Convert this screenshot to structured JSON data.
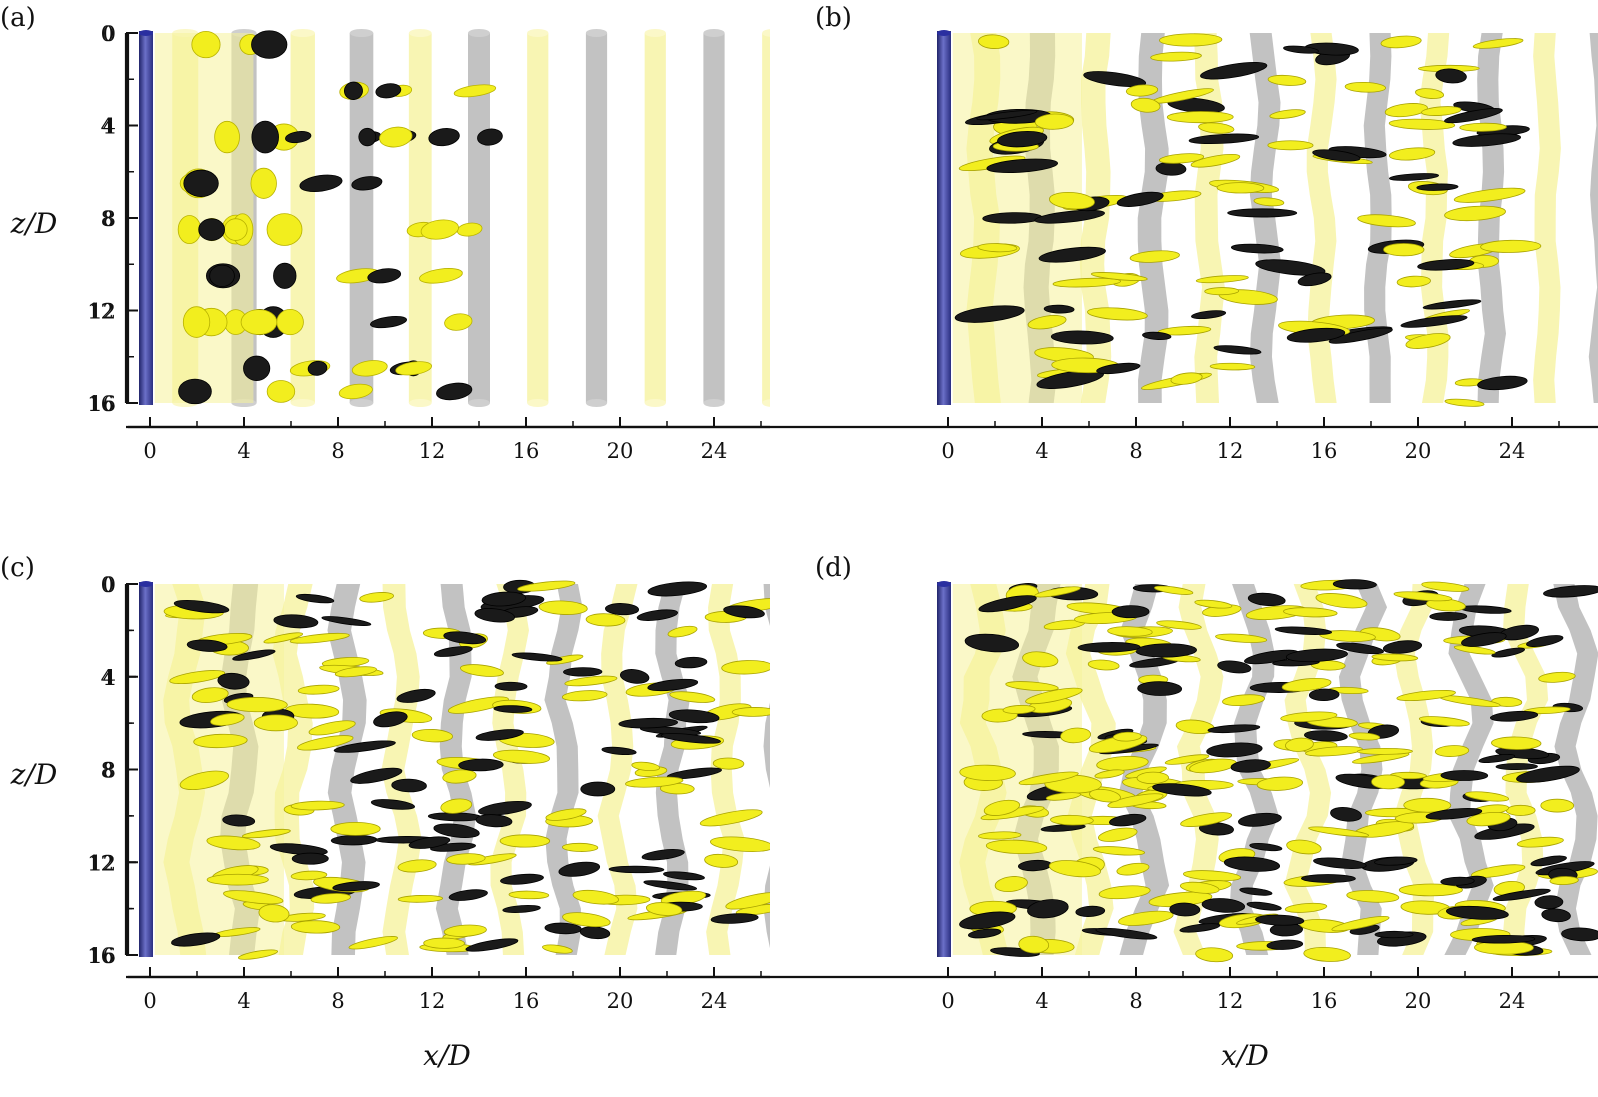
{
  "figure": {
    "x_axis_label": "x/D",
    "y_axis_label": "z/D",
    "x_ticks": [
      "0",
      "4",
      "8",
      "12",
      "16",
      "20",
      "24"
    ],
    "z_ticks": [
      "0",
      "4",
      "8",
      "12",
      "16"
    ],
    "colors": {
      "positive_surface": "#f2ee1e",
      "positive_transparent": "#f6f29a",
      "negative_surface": "#1a1a1a",
      "negative_transparent": "#9a9a9a",
      "cylinder": "#3a3f9a"
    },
    "panels": [
      {
        "id": "a",
        "label": "(a)",
        "complexity": 0
      },
      {
        "id": "b",
        "label": "(b)",
        "complexity": 1
      },
      {
        "id": "c",
        "label": "(c)",
        "complexity": 2
      },
      {
        "id": "d",
        "label": "(d)",
        "complexity": 3
      }
    ]
  }
}
